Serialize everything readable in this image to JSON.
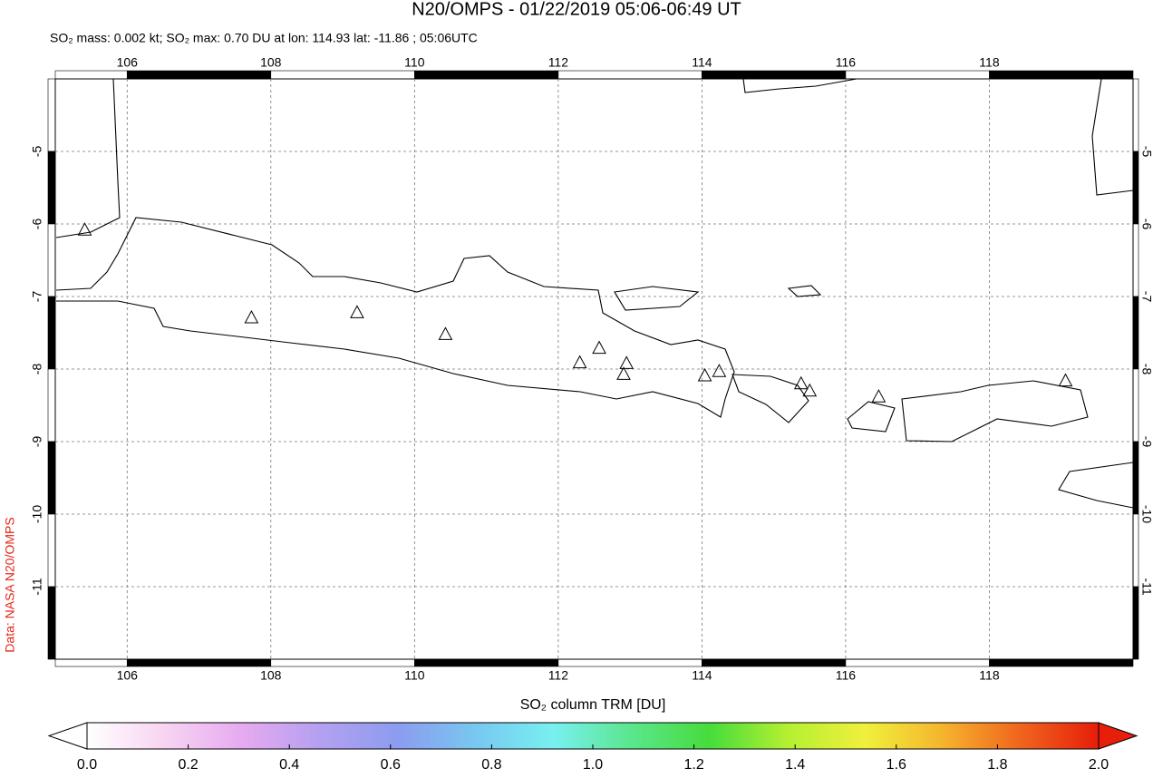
{
  "chart_data": {
    "type": "map",
    "title": "N20/OMPS - 01/22/2019 05:06-06:49 UT",
    "subtitle": "SO₂ mass: 0.002 kt; SO₂ max: 0.70 DU at lon: 114.93 lat: -11.86 ; 05:06UTC",
    "side_label": "Data: NASA N20/OMPS",
    "xlim": [
      105,
      120
    ],
    "ylim": [
      -12,
      -4
    ],
    "xticks": [
      106,
      108,
      110,
      112,
      114,
      116,
      118
    ],
    "yticks": [
      -5,
      -6,
      -7,
      -8,
      -9,
      -10,
      -11
    ],
    "grid": true,
    "volcanoes": {
      "lon": [
        105.41,
        107.73,
        109.2,
        110.43,
        112.3,
        112.57,
        112.95,
        112.91,
        114.04,
        114.24,
        115.38,
        115.5,
        116.46,
        119.06
      ],
      "lat": [
        -6.09,
        -7.3,
        -7.23,
        -7.53,
        -7.92,
        -7.72,
        -7.93,
        -8.08,
        -8.1,
        -8.04,
        -8.21,
        -8.31,
        -8.39,
        -8.17
      ]
    },
    "colorbar": {
      "label": "SO₂ column TRM [DU]",
      "lim": [
        0,
        2
      ],
      "ticks": [
        {
          "value": 0,
          "label": "0.0"
        },
        {
          "value": 0.2,
          "label": "0.2"
        },
        {
          "value": 0.4,
          "label": "0.4"
        },
        {
          "value": 0.6,
          "label": "0.6"
        },
        {
          "value": 0.8,
          "label": "0.8"
        },
        {
          "value": 1,
          "label": "1.0"
        },
        {
          "value": 1.2,
          "label": "1.2"
        },
        {
          "value": 1.4,
          "label": "1.4"
        },
        {
          "value": 1.6,
          "label": "1.6"
        },
        {
          "value": 1.8,
          "label": "1.8"
        },
        {
          "value": 2,
          "label": "2.0"
        }
      ],
      "colors": [
        "#ffffff",
        "#f7d4f2",
        "#e6aaf0",
        "#b4a0f0",
        "#8c9cf0",
        "#78c8f0",
        "#78f0f0",
        "#5ae68c",
        "#46dc3c",
        "#b4f032",
        "#f0f03c",
        "#f5b42d",
        "#f0641e",
        "#e61e0a"
      ]
    }
  }
}
